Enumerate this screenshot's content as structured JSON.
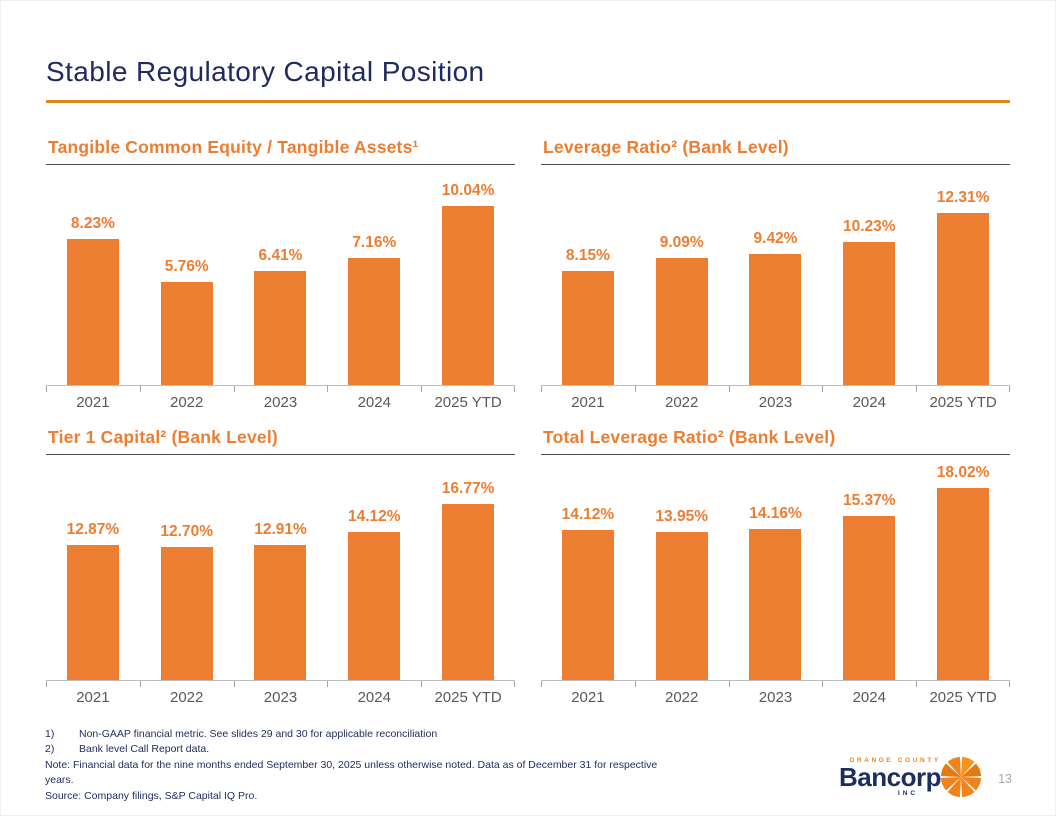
{
  "page": {
    "title": "Stable Regulatory Capital Position",
    "page_number": "13"
  },
  "colors": {
    "orange": "#ED7D31",
    "rule_orange": "#E0861A",
    "navy": "#1E2B5C",
    "axis_gray": "#BFBFBF",
    "year_label_gray": "#595959"
  },
  "chart_data": [
    {
      "type": "bar",
      "title": "Tangible Common Equity / Tangible Assets¹",
      "categories": [
        "2021",
        "2022",
        "2023",
        "2024",
        "2025 YTD"
      ],
      "values": [
        8.23,
        5.76,
        6.41,
        7.16,
        10.04
      ],
      "labels": [
        "8.23%",
        "5.76%",
        "6.41%",
        "7.16%",
        "10.04%"
      ],
      "ylim": [
        0,
        10.9
      ],
      "grid": false,
      "legend": "none",
      "data_labels": "above-bars"
    },
    {
      "type": "bar",
      "title": "Leverage Ratio² (Bank Level)",
      "categories": [
        "2021",
        "2022",
        "2023",
        "2024",
        "2025 YTD"
      ],
      "values": [
        8.15,
        9.09,
        9.42,
        10.23,
        12.31
      ],
      "labels": [
        "8.15%",
        "9.09%",
        "9.42%",
        "10.23%",
        "12.31%"
      ],
      "ylim": [
        0,
        13.9
      ],
      "grid": false,
      "legend": "none",
      "data_labels": "above-bars"
    },
    {
      "type": "bar",
      "title": "Tier 1 Capital² (Bank Level)",
      "categories": [
        "2021",
        "2022",
        "2023",
        "2024",
        "2025 YTD"
      ],
      "values": [
        12.87,
        12.7,
        12.91,
        14.12,
        16.77
      ],
      "labels": [
        "12.87%",
        "12.70%",
        "12.91%",
        "14.12%",
        "16.77%"
      ],
      "ylim": [
        0,
        19.0
      ],
      "grid": false,
      "legend": "none",
      "data_labels": "above-bars"
    },
    {
      "type": "bar",
      "title": "Total Leverage Ratio² (Bank Level)",
      "categories": [
        "2021",
        "2022",
        "2023",
        "2024",
        "2025 YTD"
      ],
      "values": [
        14.12,
        13.95,
        14.16,
        15.37,
        18.02
      ],
      "labels": [
        "14.12%",
        "13.95%",
        "14.16%",
        "15.37%",
        "18.02%"
      ],
      "ylim": [
        0,
        18.7
      ],
      "grid": false,
      "legend": "none",
      "data_labels": "above-bars"
    }
  ],
  "footnotes": [
    {
      "marker": "1)",
      "text": "Non-GAAP financial metric. See slides 29 and 30 for applicable reconciliation"
    },
    {
      "marker": "2)",
      "text": "Bank level Call Report data."
    },
    {
      "marker": "",
      "text": "Note: Financial data for the nine months ended September 30, 2025 unless otherwise noted. Data as of December 31 for respective years."
    },
    {
      "marker": "",
      "text": "Source: Company filings, S&P Capital IQ Pro."
    }
  ],
  "logo": {
    "top_text": "ORANGE COUNTY",
    "name": "Bancorp",
    "sub_text": "INC"
  }
}
